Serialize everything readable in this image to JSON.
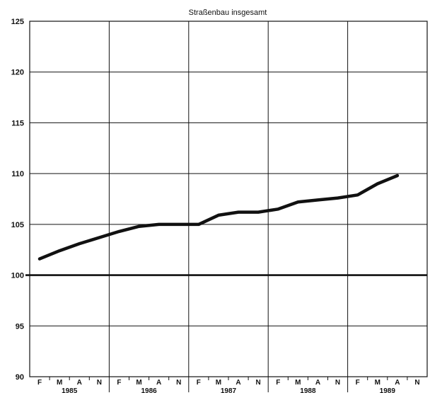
{
  "chart_data": {
    "type": "line",
    "title": "Straßenbau insgesamt",
    "xlabel": "",
    "ylabel": "",
    "ylim": [
      90,
      125
    ],
    "y_ticks": [
      "90",
      "95",
      "100",
      "105",
      "110",
      "115",
      "120",
      "125"
    ],
    "reference_line": 100,
    "grid": true,
    "years": [
      "1985",
      "1986",
      "1987",
      "1988",
      "1989"
    ],
    "month_labels": [
      "F",
      "M",
      "A",
      "N"
    ],
    "series": [
      {
        "values": [
          101.6,
          102.4,
          103.1,
          103.7,
          104.3,
          104.8,
          105.0,
          105.0,
          105.0,
          105.9,
          106.2,
          106.2,
          106.5,
          107.2,
          107.4,
          107.6,
          107.9,
          109.0,
          109.8
        ]
      }
    ]
  }
}
